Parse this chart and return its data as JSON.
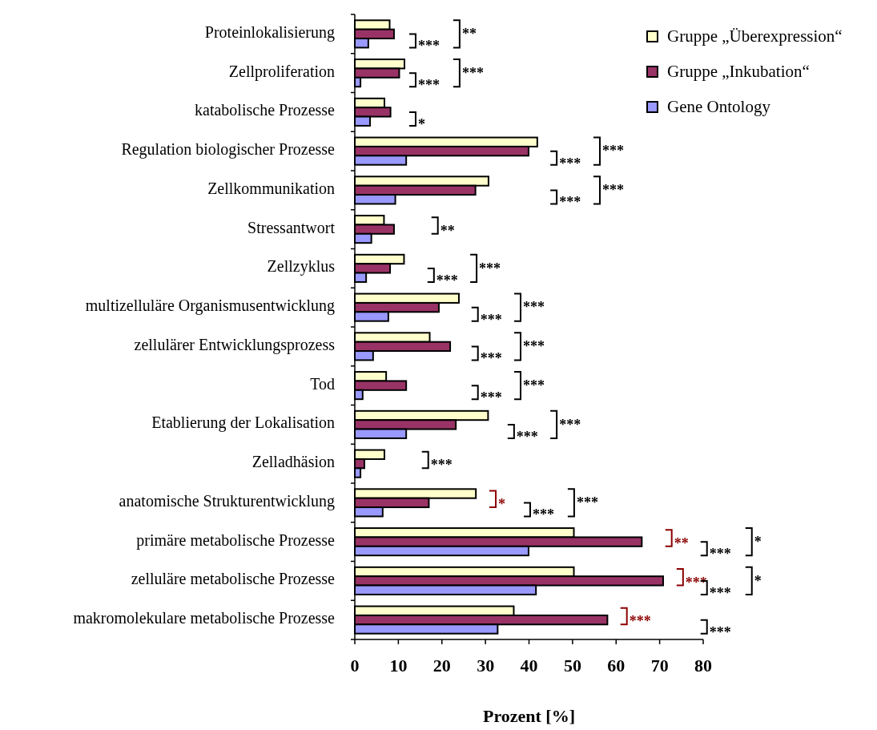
{
  "chart_data": {
    "type": "bar",
    "orientation": "horizontal",
    "xlabel": "Prozent [%]",
    "categories": [
      "Proteinlokalisierung",
      "Zellproliferation",
      "katabolische Prozesse",
      "Regulation biologischer Prozesse",
      "Zellkommunikation",
      "Stressantwort",
      "Zellzyklus",
      "multizelluläre Organismusentwicklung",
      "zellulärer Entwicklungsprozess",
      "Tod",
      "Etablierung der Lokalisation",
      "Zelladhäsion",
      "anatomische Strukturentwicklung",
      "primäre metabolische Prozesse",
      "zelluläre metabolische Prozesse",
      "makromolekulare metabolische Prozesse"
    ],
    "series": [
      {
        "name": "Gruppe „Überexpression“",
        "color": "#ffffcc",
        "values": [
          8.0,
          11.4,
          6.8,
          41.9,
          30.7,
          6.7,
          11.3,
          23.9,
          17.2,
          7.2,
          30.6,
          6.8,
          27.8,
          50.3,
          50.3,
          36.5
        ]
      },
      {
        "name": "Gruppe „Inkubation“",
        "color": "#993366",
        "values": [
          9.0,
          10.2,
          8.2,
          39.9,
          27.7,
          9.0,
          8.1,
          19.3,
          21.9,
          11.8,
          23.2,
          2.2,
          17.0,
          65.9,
          70.8,
          58.0
        ]
      },
      {
        "name": "Gene Ontology",
        "color": "#9999ff",
        "values": [
          3.1,
          1.3,
          3.5,
          11.8,
          9.3,
          3.8,
          2.6,
          7.7,
          4.2,
          1.8,
          11.8,
          1.3,
          6.4,
          39.9,
          41.6,
          32.8
        ]
      }
    ],
    "xlim": [
      0,
      80
    ],
    "xticks": [
      0,
      10,
      20,
      30,
      40,
      50,
      60,
      70,
      80
    ],
    "legend": "top right",
    "annotations": [
      "***",
      "**",
      "***",
      "***",
      "*",
      "***",
      "***",
      "***",
      "***",
      "**",
      "***",
      "***",
      "***",
      "***",
      "***",
      "***",
      "***",
      "***",
      "***",
      "***",
      "***",
      "*",
      "***",
      "***",
      "**",
      "***",
      "*",
      "***",
      "***",
      "*",
      "***",
      "***"
    ]
  }
}
